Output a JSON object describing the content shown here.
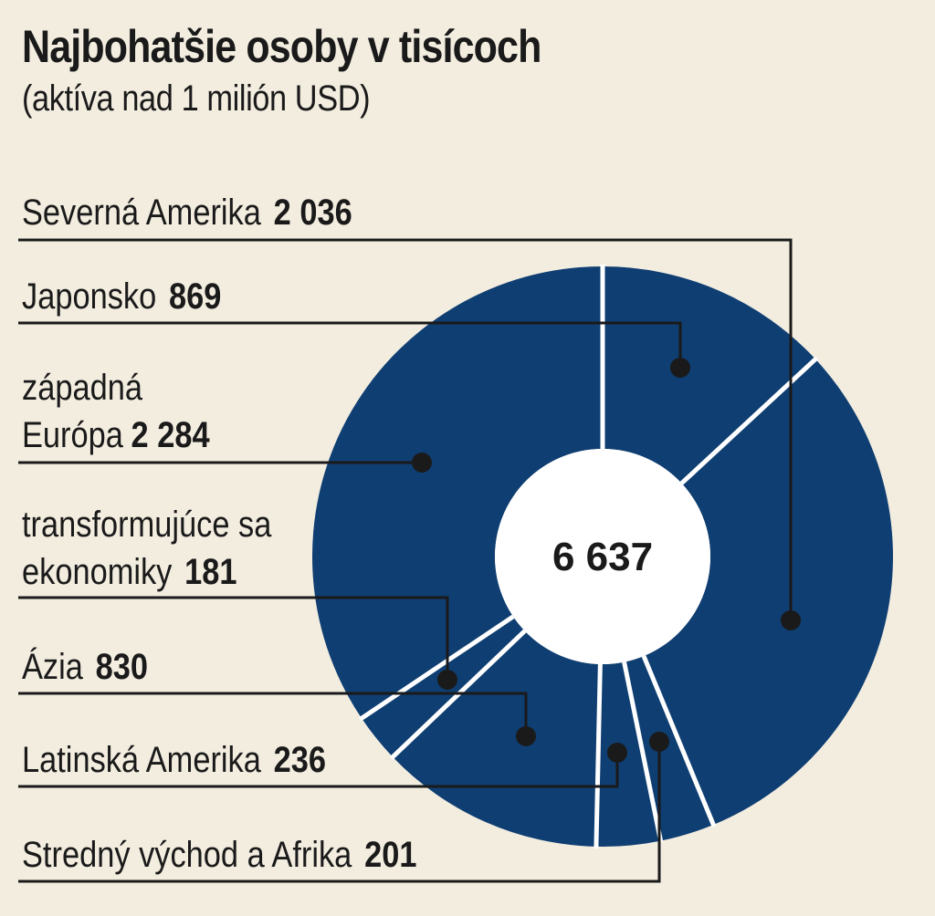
{
  "title": "Najbohatšie osoby v tisícoch",
  "subtitle": "(aktíva nad 1 milión USD)",
  "colors": {
    "background": "#f3ede0",
    "ring": "#0f3e72",
    "separator": "#ffffff",
    "center": "#ffffff",
    "leader": "#1a1a1a"
  },
  "chart_data": {
    "type": "pie",
    "title": "Najbohatšie osoby v tisícoch",
    "subtitle": "(aktíva nad 1 milión USD)",
    "center_label": "6 637",
    "total": 6637,
    "slices": [
      {
        "label": "Severná Amerika",
        "value": 2036,
        "value_label": "2 036"
      },
      {
        "label": "Japonsko",
        "value": 869,
        "value_label": "869"
      },
      {
        "label": "západná Európa",
        "value": 2284,
        "value_label": "2 284"
      },
      {
        "label": "transformujúce sa ekonomiky",
        "value": 181,
        "value_label": "181"
      },
      {
        "label": "Ázia",
        "value": 830,
        "value_label": "830"
      },
      {
        "label": "Latinská Amerika",
        "value": 236,
        "value_label": "236"
      },
      {
        "label": "Stredný východ a Afrika",
        "value": 201,
        "value_label": "201"
      }
    ],
    "labels": {
      "severna_amerika": {
        "name": "Severná Amerika",
        "value": "2 036"
      },
      "japonsko": {
        "name": "Japonsko",
        "value": "869"
      },
      "zapadna_europa_l1": "západná",
      "zapadna_europa_l2": "Európa",
      "zapadna_europa_value": "2 284",
      "transform_l1": "transformujúce sa",
      "transform_l2": "ekonomiky",
      "transform_value": "181",
      "azia": {
        "name": "Ázia",
        "value": "830"
      },
      "latinska": {
        "name": "Latinská Amerika",
        "value": "236"
      },
      "stredny": {
        "name": "Stredný východ a Afrika",
        "value": "201"
      }
    }
  }
}
